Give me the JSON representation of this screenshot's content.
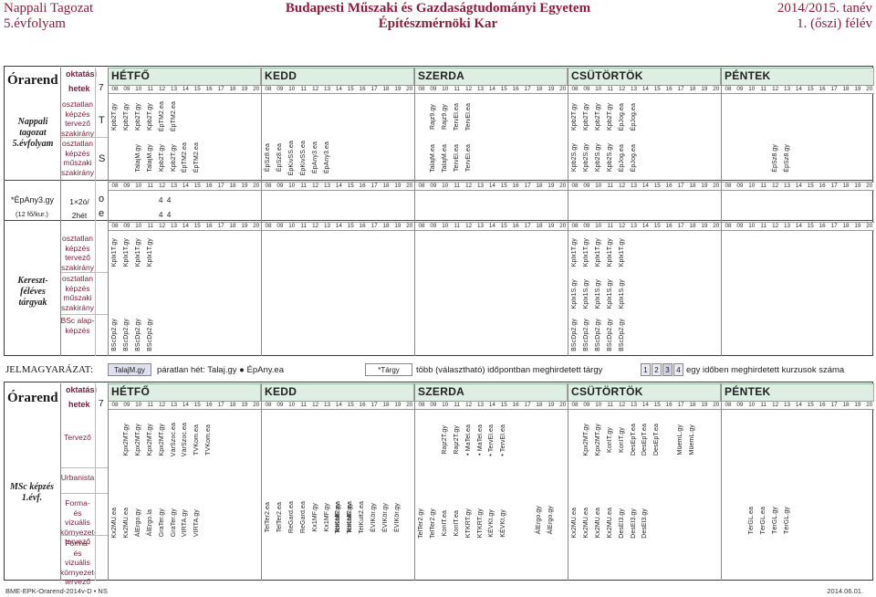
{
  "header": {
    "left_line1": "Nappali Tagozat",
    "left_line2": "5.évfolyam",
    "center_line1": "Budapesti Műszaki és Gazdaságtudományi Egyetem",
    "center_line2": "Építészmérnöki Kar",
    "right_line1": "2014/2015. tanév",
    "right_line2": "1. (őszi) félév"
  },
  "timetable": {
    "label": "Órarend",
    "col_oktatasi": "oktatási",
    "col_hetek": "hetek",
    "week_count": "7",
    "days": [
      "HÉTFŐ",
      "KEDD",
      "SZERDA",
      "CSÜTÖRTÖK",
      "PÉNTEK"
    ],
    "hours": [
      "08",
      "09",
      "10",
      "11",
      "12",
      "13",
      "14",
      "15",
      "16",
      "17",
      "18",
      "19",
      "20"
    ]
  },
  "block1": {
    "side_label": "Nappali tagozat 5.évfolyam",
    "row1_label": "osztatlan képzés tervező szakirány",
    "row1_letter": "T",
    "row2_label": "osztatlan képzés műszaki szakirány",
    "row2_letter": "S",
    "note_label": "*ÉpAny3.gy",
    "note_sub": "(12 fő/kur.)",
    "note_freq": "1×2ó/ 2hét",
    "note_o": "o",
    "note_e": "e",
    "note_val_o": "4  4",
    "note_val_e": "4  4"
  },
  "block1_cells": {
    "mon_T": [
      "Kpb2T.gy",
      "Kpb2T.gy",
      "Kpb2T.gy",
      "Kpb2T.gy",
      "ÉpTM2.ea",
      "ÉpTM2.ea"
    ],
    "mon_S": [
      "TalajM.gy",
      "TalajM.gy",
      "Kpb2T.gy",
      "Kpb2T.gy",
      "ÉpTM2.ea",
      "ÉpTM2.ea"
    ],
    "tue_S": [
      "ÉpSz8.ea",
      "ÉpSz8.ea",
      "ÉpKivSS.ea",
      "ÉpKivSS.ea",
      "ÉpAny3.ea",
      "ÉpAny3.ea"
    ],
    "wed_T": [
      "Rajz9.gy",
      "Rajz9.gy",
      "TervEl.ea",
      "TervEl.ea"
    ],
    "wed_S": [
      "TalajM.ea",
      "TalajM.ea",
      "TervEl.ea",
      "TervEl.ea"
    ],
    "thu_T": [
      "Kpb2T.gy",
      "Kpb2T.gy",
      "Kpb2T.gy",
      "Kpb2T.gy",
      "ÉpJog.ea",
      "ÉpJog.ea"
    ],
    "thu_S": [
      "Kpb2S.gy",
      "Kpb2S.gy",
      "Kpb2S.gy",
      "Kpb2S.gy",
      "ÉpJog.ea",
      "ÉpJog.ea"
    ],
    "fri_S": [
      "ÉpSz8.gy",
      "ÉpSz8.gy"
    ]
  },
  "block2": {
    "side_label": "Kereszt-féléves tárgyak",
    "row1_label": "osztatlan képzés tervező szakirány",
    "row2_label": "osztatlan képzés műszaki szakirány",
    "row3_label": "BSc alap-képzés"
  },
  "block2_cells": {
    "mon_T": [
      "Kplx1T.gy",
      "Kplx1T.gy",
      "Kplx1T.gy",
      "Kplx1T.gy"
    ],
    "mon_B": [
      "BScDp2.gy",
      "BScDp2.gy",
      "BScDp2.gy",
      "BScDp2.gy"
    ],
    "thu_T": [
      "Kplx1T.gy",
      "Kplx1T.gy",
      "Kplx1T.gy",
      "Kplx1T.gy",
      "Kplx1T.gy"
    ],
    "thu_S": [
      "Kplx1S.gy",
      "Kplx1S.gy",
      "Kplx1S.gy",
      "Kplx1S.gy",
      "Kplx1S.gy"
    ],
    "thu_B": [
      "BScDp2.gy",
      "BScDp2.gy",
      "BScDp2.gy",
      "BScDp2.gy",
      "BScDp2.gy"
    ]
  },
  "legend": {
    "title": "JELMAGYARÁZAT:",
    "box1": "TalajM.gy",
    "text1": "páratlan hét: Talaj.gy ● ÉpAny.ea",
    "box2": "*Tárgy",
    "text2": "több (választható) időpontban meghirdetett tárgy",
    "nums": [
      "1",
      "2",
      "3",
      "4"
    ],
    "text3": "egy időben meghirdetett kurzusok száma"
  },
  "block3": {
    "side_label": "MSc képzés 1.évf.",
    "row1_label": "Tervező",
    "row2_label": "Urbanista",
    "row3_label": "Forma- és vizuális környezet-tervező",
    "row4_label": "Forma- és vizuális környezet-tervező"
  },
  "block3_cells": {
    "mon": [
      "Kx2MU.ea",
      "Kx2MU.ea",
      "ÁlErgo.gy",
      "ÁlErgo.la",
      "GraTer.gy",
      "GraTer.gy",
      "VIRTA.gy",
      "VIRTA.gy"
    ],
    "mon2": [
      "Kpx2MT.gy",
      "Kpx2MT.gy",
      "Kpx2MT.gy",
      "Kpx2MT.gy",
      "VárSzoc.ea",
      "VárSzoc.ea",
      "TVKom.ea",
      "TVKom.ea"
    ],
    "tue": [
      "TelTer2.ea",
      "TelTer2.ea",
      "ReGard.ea",
      "ReGard.ea",
      "Kx1MF.gy",
      "Kx1MF.gy",
      "Kx1MF.gy",
      "Kx1MF.gy"
    ],
    "tue2": [
      "TelKult2.ea",
      "TelKult2.ea",
      "TelKult2.ea",
      "ÉVIKör.gy",
      "ÉVIKör.gy",
      "ÉVIKör.gy"
    ],
    "wed": [
      "TelTer2.gy",
      "TelTer2.gy",
      "KonIT.ea",
      "KonIT.ea",
      "KTKRT.gy",
      "KTKRT.gy",
      "KÉVKt.gy",
      "KÉVKt.gy"
    ],
    "wed2": [
      "Rajz2T.gy",
      "Rajz2T.gy",
      "• MaTel.ea",
      "• MaTel.ea",
      "• TervEl.ea",
      "• TervEl.ea"
    ],
    "wed3": [
      "ÁlErgo.gy",
      "ÁlErgo.gy"
    ],
    "thu": [
      "Kx2MU.ea",
      "Kx2MU.ea",
      "Kx2MU.ea",
      "Kx2MU.ea",
      "DesEl3.gy",
      "DesEl3.gy",
      "DesEl3.gy"
    ],
    "thu2": [
      "Kpx2MT.gy",
      "Kpx2MT.gy",
      "KonIT.gy",
      "KonIT.gy",
      "DesEpT.ea",
      "DesEpT.ea",
      "DesEpT.ea"
    ],
    "thu3": [
      "MüemL.gy",
      "MüemL.gy"
    ],
    "fri": [
      "TérGL.ea",
      "TérGL.ea",
      "TérGL.gy",
      "TérGL.gy"
    ]
  },
  "footer": {
    "left": "BME-EPK-Orarend-2014v-D • NS",
    "right": "2014.06.01."
  }
}
